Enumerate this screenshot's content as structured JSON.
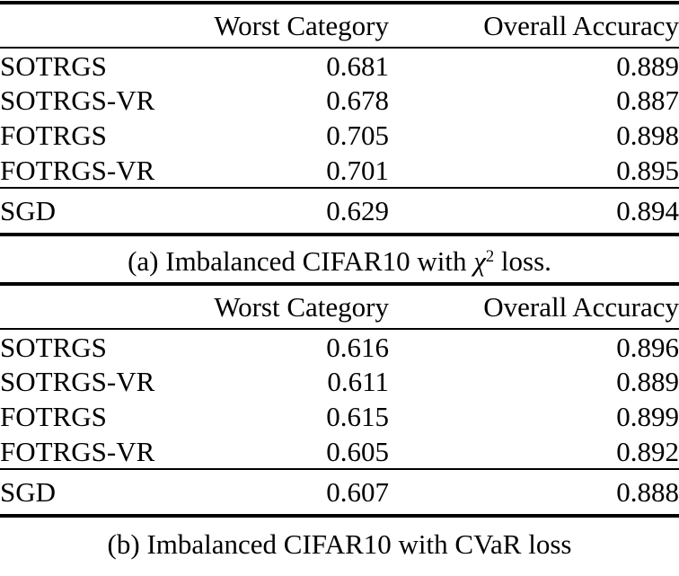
{
  "page": {
    "background_color": "#ffffff",
    "text_color": "#000000"
  },
  "tables": [
    {
      "name": "imbalanced-cifar10-chi-squared-loss",
      "columns": {
        "worst": "Worst Category",
        "overall": "Overall Accuracy"
      },
      "rows": [
        {
          "label": "SOTRGS",
          "worst": "0.681",
          "overall": "0.889"
        },
        {
          "label": "SOTRGS-VR",
          "worst": "0.678",
          "overall": "0.887"
        },
        {
          "label": "FOTRGS",
          "worst": "0.705",
          "overall": "0.898"
        },
        {
          "label": "FOTRGS-VR",
          "worst": "0.701",
          "overall": "0.895"
        }
      ],
      "baseline": {
        "label": "SGD",
        "worst": "0.629",
        "overall": "0.894"
      },
      "caption": {
        "prefix": "(a) Imbalanced CIFAR10 with ",
        "symbol": "χ",
        "superscript": "2",
        "suffix": " loss."
      }
    },
    {
      "name": "imbalanced-cifar10-cvar-loss",
      "columns": {
        "worst": "Worst Category",
        "overall": "Overall Accuracy"
      },
      "rows": [
        {
          "label": "SOTRGS",
          "worst": "0.616",
          "overall": "0.896"
        },
        {
          "label": "SOTRGS-VR",
          "worst": "0.611",
          "overall": "0.889"
        },
        {
          "label": "FOTRGS",
          "worst": "0.615",
          "overall": "0.899"
        },
        {
          "label": "FOTRGS-VR",
          "worst": "0.605",
          "overall": "0.892"
        }
      ],
      "baseline": {
        "label": "SGD",
        "worst": "0.607",
        "overall": "0.888"
      },
      "caption": {
        "prefix": "(b) Imbalanced CIFAR10 with CVaR loss",
        "symbol": "",
        "superscript": "",
        "suffix": ""
      }
    }
  ]
}
